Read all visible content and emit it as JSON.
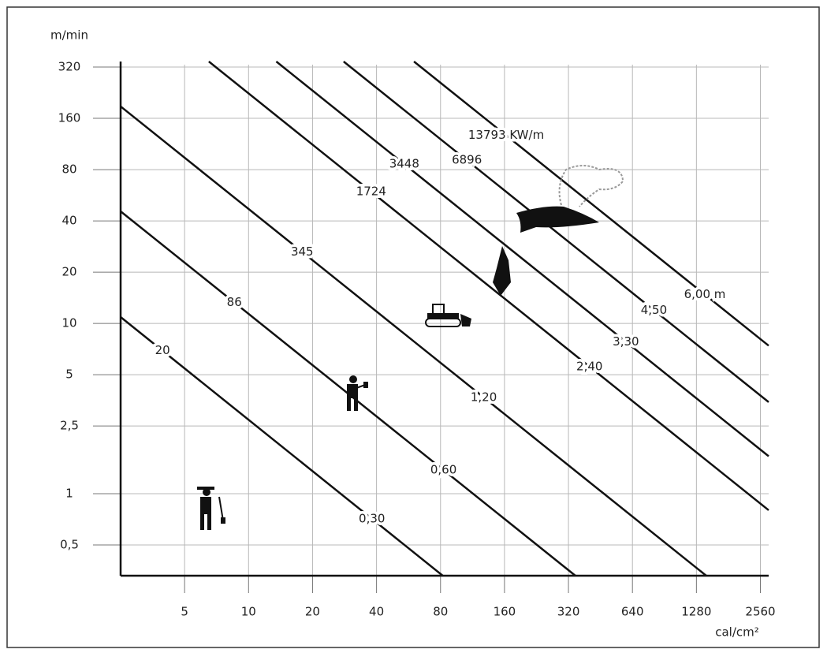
{
  "chart_data": {
    "type": "line",
    "y_label": "m/min",
    "x_label": "cal/cm²",
    "xscale": "log",
    "yscale": "log",
    "grid": true,
    "color": "#111111",
    "xlim": [
      2.5,
      2800
    ],
    "ylim": [
      0.33,
      345
    ],
    "xticks": [
      5,
      10,
      20,
      40,
      80,
      160,
      320,
      640,
      1280,
      2560
    ],
    "yticks": [
      {
        "value": 0.5,
        "label": "0,5"
      },
      1,
      {
        "value": 2.5,
        "label": "2,5"
      },
      5,
      10,
      20,
      40,
      80,
      160,
      320
    ],
    "series": [
      {
        "name": "20",
        "flame_label": "0,30",
        "x": [
          2.5,
          82
        ],
        "values": [
          10.9,
          0.33
        ]
      },
      {
        "name": "86",
        "flame_label": "0,60",
        "x": [
          2.5,
          345
        ],
        "values": [
          45.5,
          0.33
        ]
      },
      {
        "name": "345",
        "flame_label": "1,20",
        "x": [
          2.5,
          1424
        ],
        "values": [
          188,
          0.33
        ]
      },
      {
        "name": "1724",
        "flame_label": "2,40",
        "x": [
          6.5,
          2800
        ],
        "values": [
          345,
          0.8
        ]
      },
      {
        "name": "3448",
        "flame_label": "3,30",
        "x": [
          13.5,
          2800
        ],
        "values": [
          345,
          1.66
        ]
      },
      {
        "name": "6896",
        "flame_label": "4,50",
        "x": [
          28,
          2800
        ],
        "values": [
          345,
          3.45
        ]
      },
      {
        "name": "13793 KW/m",
        "flame_label": "6,00 m",
        "x": [
          60,
          2800
        ],
        "values": [
          345,
          7.4
        ]
      }
    ]
  }
}
